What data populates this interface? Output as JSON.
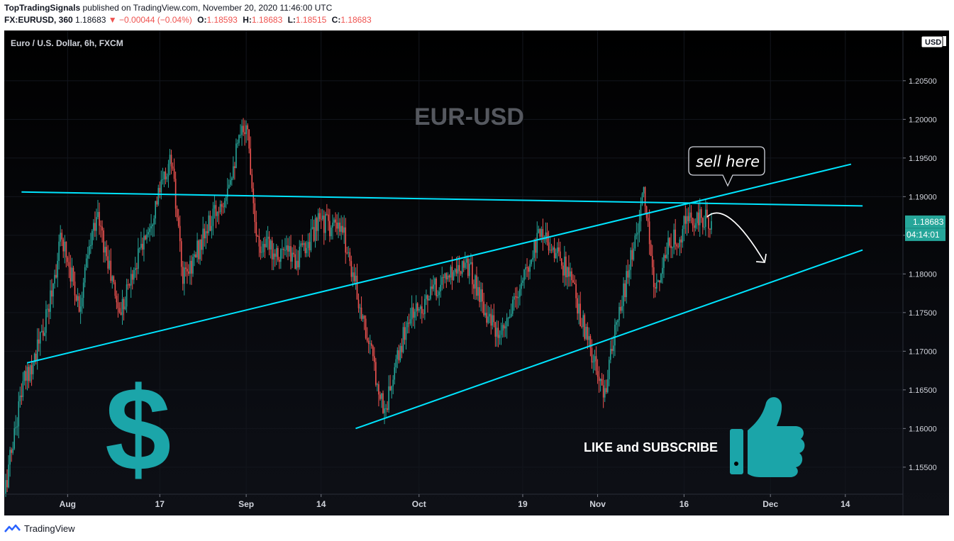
{
  "header": {
    "author": "TopTradingSignals",
    "published_text": "published on TradingView.com, November 20, 2020 11:46:00 UTC",
    "symbol": "FX:EURUSD, 360",
    "last": "1.18683",
    "change_arrow": "▼",
    "change": "−0.00044 (−0.04%)",
    "o_label": "O:",
    "o_value": "1.18593",
    "h_label": "H:",
    "h_value": "1.18683",
    "l_label": "L:",
    "l_value": "1.18515",
    "c_label": "C:",
    "c_value": "1.18683"
  },
  "legend_title": "Euro / U.S. Dollar, 6h, FXCM",
  "currency_badge": "USD",
  "price_tag": "1.18683",
  "countdown_tag": "04:14:01",
  "annotations": {
    "big_title": "EUR-USD",
    "callout": "sell here",
    "cta": "LIKE and SUBSCRIBE"
  },
  "footer": {
    "brand": "TradingView"
  },
  "colors": {
    "up": "#26a69a",
    "down": "#ef5350",
    "trendline": "#00e5ff",
    "price_tag_bg": "#26a69a",
    "icon_teal": "#1ba5a9",
    "title_gray": "#55585f"
  },
  "chart_data": {
    "type": "candlestick",
    "title": "Euro / U.S. Dollar, 6h, FXCM",
    "ylim": [
      1.1515,
      1.2115
    ],
    "y_ticks": [
      1.155,
      1.16,
      1.165,
      1.17,
      1.175,
      1.18,
      1.185,
      1.19,
      1.195,
      1.2,
      1.205
    ],
    "y_tick_labels": [
      "1.15500",
      "1.16000",
      "1.16500",
      "1.17000",
      "1.17500",
      "1.18000",
      "1.18500",
      "1.19000",
      "1.19500",
      "1.20000",
      "1.20500"
    ],
    "x_tick_labels": [
      "Aug",
      "17",
      "Sep",
      "14",
      "Oct",
      "19",
      "Nov",
      "16",
      "Dec",
      "14"
    ],
    "x_tick_dates": [
      "2020-08-01",
      "2020-08-17",
      "2020-09-01",
      "2020-09-14",
      "2020-10-01",
      "2020-10-19",
      "2020-11-01",
      "2020-11-16",
      "2020-12-01",
      "2020-12-14"
    ],
    "x_range": [
      "2020-07-21",
      "2020-12-24"
    ],
    "last_bar_date": "2020-11-20",
    "anchor_prices": [
      [
        "2020-07-21",
        1.1515
      ],
      [
        "2020-07-24",
        1.165
      ],
      [
        "2020-07-28",
        1.173
      ],
      [
        "2020-07-31",
        1.185
      ],
      [
        "2020-08-03",
        1.176
      ],
      [
        "2020-08-06",
        1.188
      ],
      [
        "2020-08-10",
        1.175
      ],
      [
        "2020-08-14",
        1.184
      ],
      [
        "2020-08-19",
        1.195
      ],
      [
        "2020-08-21",
        1.179
      ],
      [
        "2020-08-28",
        1.19
      ],
      [
        "2020-09-01",
        1.2
      ],
      [
        "2020-09-03",
        1.184
      ],
      [
        "2020-09-10",
        1.182
      ],
      [
        "2020-09-14",
        1.187
      ],
      [
        "2020-09-18",
        1.185
      ],
      [
        "2020-09-25",
        1.162
      ],
      [
        "2020-09-29",
        1.174
      ],
      [
        "2020-10-05",
        1.179
      ],
      [
        "2020-10-09",
        1.182
      ],
      [
        "2020-10-15",
        1.171
      ],
      [
        "2020-10-20",
        1.181
      ],
      [
        "2020-10-22",
        1.186
      ],
      [
        "2020-10-27",
        1.18
      ],
      [
        "2020-11-02",
        1.164
      ],
      [
        "2020-11-04",
        1.172
      ],
      [
        "2020-11-09",
        1.19
      ],
      [
        "2020-11-11",
        1.178
      ],
      [
        "2020-11-13",
        1.183
      ],
      [
        "2020-11-17",
        1.187
      ],
      [
        "2020-11-20",
        1.18683
      ]
    ],
    "trendlines": [
      {
        "from": [
          "2020-07-24",
          1.1906
        ],
        "to": [
          "2020-12-17",
          1.1888
        ]
      },
      {
        "from": [
          "2020-07-25",
          1.1685
        ],
        "to": [
          "2020-12-15",
          1.1942
        ]
      },
      {
        "from": [
          "2020-09-20",
          1.16
        ],
        "to": [
          "2020-12-17",
          1.1831
        ]
      }
    ],
    "projection_arrow": {
      "from": [
        "2020-11-20",
        1.1883
      ],
      "to": [
        "2020-11-30",
        1.1815
      ]
    }
  }
}
